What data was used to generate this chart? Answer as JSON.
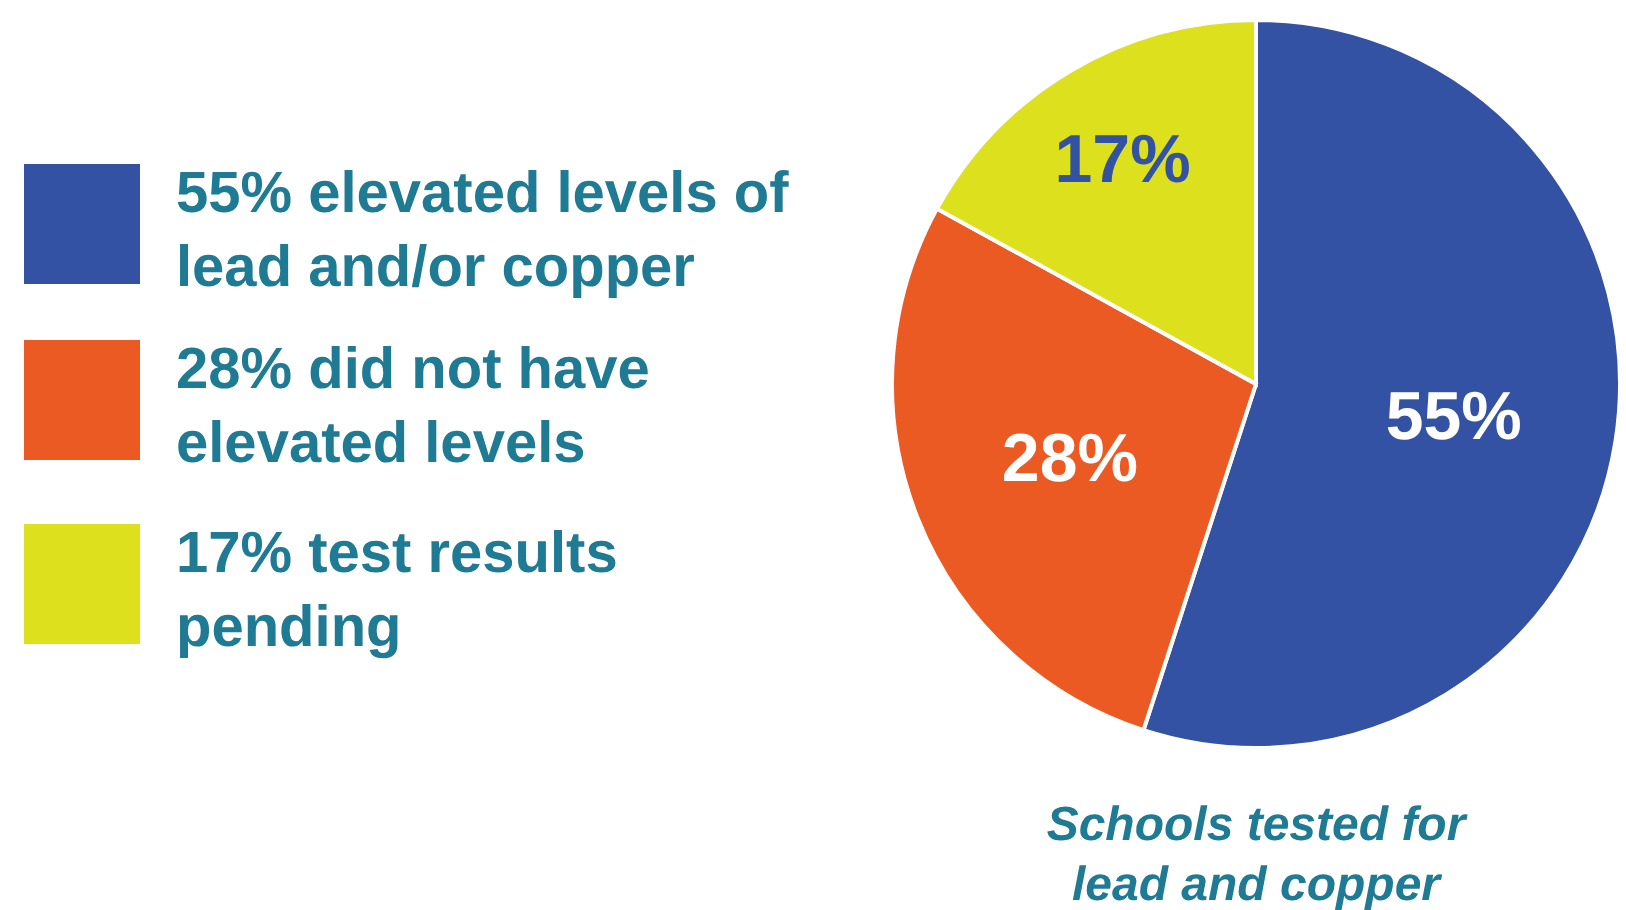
{
  "chart_data": {
    "type": "pie",
    "categories": [
      "55% elevated levels of lead and/or copper",
      "28% did not have elevated levels",
      "17% test results pending"
    ],
    "values": [
      55,
      28,
      17
    ],
    "colors": [
      "#3452a4",
      "#ec5a24",
      "#dde01c"
    ],
    "value_labels": [
      "55%",
      "28%",
      "17%"
    ],
    "xlabel": "Schools tested for lead and copper",
    "legend": "left"
  }
}
